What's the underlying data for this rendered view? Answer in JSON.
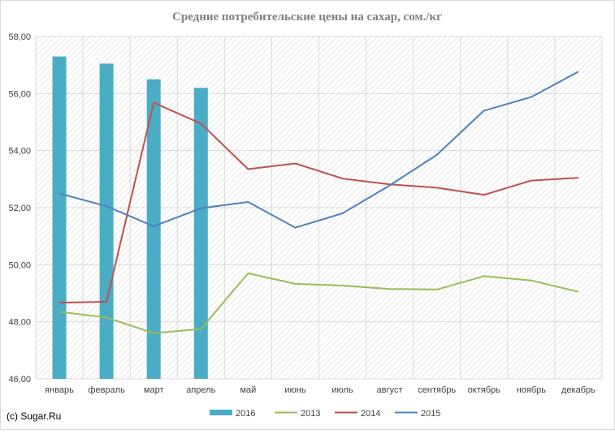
{
  "chart_data": {
    "type": "bar",
    "title": "Средние потребительские цены на сахар, сом./кг",
    "categories": [
      "январь",
      "февраль",
      "март",
      "апрель",
      "май",
      "июнь",
      "июль",
      "август",
      "сентябрь",
      "октябрь",
      "ноябрь",
      "декабрь"
    ],
    "ylim": [
      46,
      58
    ],
    "yticks": [
      "46,00",
      "48,00",
      "50,00",
      "52,00",
      "54,00",
      "56,00",
      "58,00"
    ],
    "grid": true,
    "legend_position": "bottom",
    "series": [
      {
        "name": "2016",
        "type": "bar",
        "color": "#4bacc6",
        "values": [
          57.3,
          57.05,
          56.5,
          56.2,
          null,
          null,
          null,
          null,
          null,
          null,
          null,
          null
        ]
      },
      {
        "name": "2013",
        "type": "line",
        "color": "#9bbb59",
        "values": [
          48.35,
          48.15,
          47.6,
          47.75,
          49.7,
          49.33,
          49.27,
          49.15,
          49.13,
          49.6,
          49.45,
          49.05
        ]
      },
      {
        "name": "2014",
        "type": "line",
        "color": "#c0504d",
        "values": [
          48.67,
          48.7,
          55.68,
          54.95,
          53.35,
          53.55,
          53.02,
          52.82,
          52.7,
          52.45,
          52.95,
          53.05
        ]
      },
      {
        "name": "2015",
        "type": "line",
        "color": "#4f81bd",
        "values": [
          52.5,
          52.05,
          51.35,
          51.98,
          52.2,
          51.3,
          51.8,
          52.78,
          53.85,
          55.4,
          55.88,
          56.77
        ]
      }
    ],
    "copyright": "(c) Sugar.Ru"
  }
}
